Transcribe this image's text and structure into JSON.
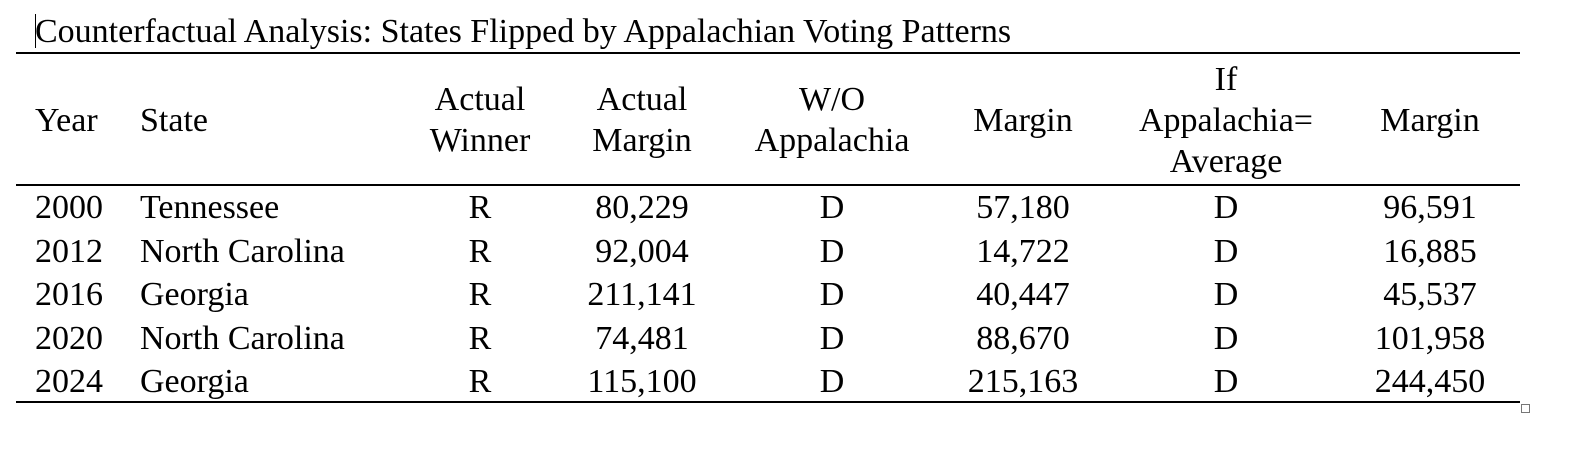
{
  "title": "Counterfactual Analysis: States Flipped by Appalachian Voting Patterns",
  "table": {
    "headers": [
      [
        "Year"
      ],
      [
        "State"
      ],
      [
        "Actual",
        "Winner"
      ],
      [
        "Actual",
        "Margin"
      ],
      [
        "W/O",
        "Appalachia"
      ],
      [
        "Margin"
      ],
      [
        "If",
        "Appalachia=",
        "Average"
      ],
      [
        "Margin"
      ]
    ],
    "rows": [
      [
        "2000",
        "Tennessee",
        "R",
        "80,229",
        "D",
        "57,180",
        "D",
        "96,591"
      ],
      [
        "2012",
        "North Carolina",
        "R",
        "92,004",
        "D",
        "14,722",
        "D",
        "16,885"
      ],
      [
        "2016",
        "Georgia",
        "R",
        "211,141",
        "D",
        "40,447",
        "D",
        "45,537"
      ],
      [
        "2020",
        "North Carolina",
        "R",
        "74,481",
        "D",
        "88,670",
        "D",
        "101,958"
      ],
      [
        "2024",
        "Georgia",
        "R",
        "115,100",
        "D",
        "215,163",
        "D",
        "244,450"
      ]
    ]
  }
}
